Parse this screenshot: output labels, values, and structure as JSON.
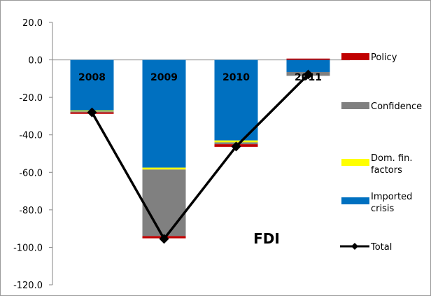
{
  "chart_data": {
    "type": "bar",
    "stacked": true,
    "categories": [
      "2008",
      "2009",
      "2010",
      "2011"
    ],
    "series": [
      {
        "name": "Imported crisis",
        "color": "#0070C0",
        "values": [
          -27.0,
          -57.5,
          -43.0,
          -6.5
        ]
      },
      {
        "name": "Dom. fin. factors",
        "color": "#FFFF00",
        "values": [
          -0.5,
          -1.0,
          -1.0,
          0.0
        ]
      },
      {
        "name": "Confidence",
        "color": "#808080",
        "values": [
          -0.5,
          -35.5,
          -1.0,
          -2.0
        ]
      },
      {
        "name": "Policy",
        "color": "#C00000",
        "values": [
          -0.8,
          -1.2,
          -1.4,
          0.7
        ]
      }
    ],
    "total": {
      "name": "Total",
      "color": "#000000",
      "values": [
        -28.0,
        -95.5,
        -46.2,
        -7.8
      ]
    },
    "ylim": [
      -120,
      20
    ],
    "yticks": [
      "20.0",
      "0.0",
      "-20.0",
      "-40.0",
      "-60.0",
      "-80.0",
      "-100.0",
      "-120.0"
    ],
    "ytick_values": [
      20,
      0,
      -20,
      -40,
      -60,
      -80,
      -100,
      -120
    ],
    "annotation": "FDI",
    "legend_position": "right",
    "legend": [
      {
        "label": "Policy",
        "kind": "bar",
        "color": "#C00000"
      },
      {
        "label": "Confidence",
        "kind": "bar",
        "color": "#808080"
      },
      {
        "label": "Dom. fin.",
        "label2": "factors",
        "kind": "bar",
        "color": "#FFFF00"
      },
      {
        "label": "Imported",
        "label2": "crisis",
        "kind": "bar",
        "color": "#0070C0"
      },
      {
        "label": "Total",
        "kind": "line",
        "color": "#000000"
      }
    ],
    "xlabel": "",
    "ylabel": "",
    "grid": false
  }
}
